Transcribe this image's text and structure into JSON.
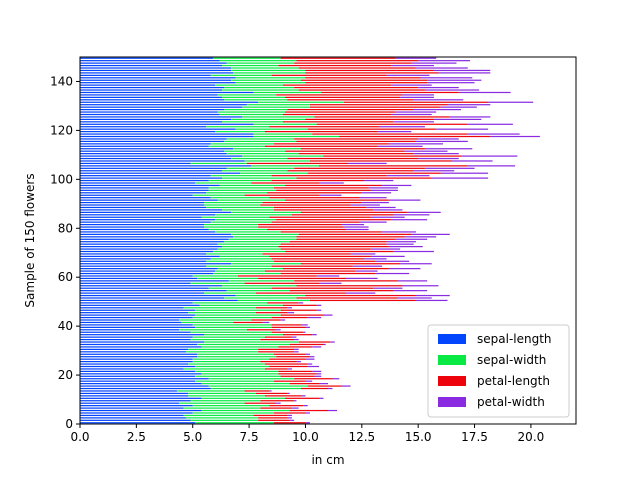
{
  "chart_data": {
    "type": "bar",
    "orientation": "horizontal",
    "stacked": true,
    "xlabel": "in cm",
    "ylabel": "Sample of 150 flowers",
    "xlim": [
      0,
      22
    ],
    "ylim": [
      0,
      150
    ],
    "xticks": [
      "0.0",
      "2.5",
      "5.0",
      "7.5",
      "10.0",
      "12.5",
      "15.0",
      "17.5",
      "20.0"
    ],
    "yticks": [
      "0",
      "20",
      "40",
      "60",
      "80",
      "100",
      "120",
      "140"
    ],
    "legend_position": "lower-right",
    "series": [
      {
        "name": "sepal-length",
        "color": "#0344fd",
        "values": [
          5.1,
          4.9,
          4.7,
          4.6,
          5.0,
          5.4,
          4.6,
          5.0,
          4.4,
          4.9,
          5.4,
          4.8,
          4.8,
          4.3,
          5.8,
          5.7,
          5.4,
          5.1,
          5.7,
          5.1,
          5.4,
          5.1,
          4.6,
          5.1,
          4.8,
          5.0,
          5.0,
          5.2,
          5.2,
          4.7,
          4.8,
          5.4,
          5.2,
          5.5,
          4.9,
          5.0,
          5.5,
          4.9,
          4.4,
          5.1,
          5.0,
          4.5,
          4.4,
          5.0,
          5.1,
          4.8,
          5.1,
          4.6,
          5.3,
          5.0,
          7.0,
          6.4,
          6.9,
          5.5,
          6.5,
          5.7,
          6.3,
          4.9,
          6.6,
          5.2,
          5.0,
          5.9,
          6.0,
          6.1,
          5.6,
          6.7,
          5.6,
          5.8,
          6.2,
          5.6,
          5.9,
          6.1,
          6.3,
          6.1,
          6.4,
          6.6,
          6.8,
          6.7,
          6.0,
          5.7,
          5.5,
          5.5,
          5.8,
          6.0,
          5.4,
          6.0,
          6.7,
          6.3,
          5.6,
          5.5,
          5.5,
          6.1,
          5.8,
          5.0,
          5.6,
          5.7,
          5.7,
          6.2,
          5.1,
          5.7,
          6.3,
          5.8,
          7.1,
          6.3,
          6.5,
          7.6,
          4.9,
          7.3,
          6.7,
          7.2,
          6.5,
          6.4,
          6.8,
          5.7,
          5.8,
          6.4,
          6.5,
          7.7,
          7.7,
          6.0,
          6.9,
          5.6,
          7.7,
          6.3,
          6.7,
          7.2,
          6.2,
          6.1,
          6.4,
          7.2,
          7.4,
          7.9,
          6.4,
          6.3,
          6.1,
          7.7,
          6.3,
          6.4,
          6.0,
          6.9,
          6.7,
          6.9,
          5.8,
          6.8,
          6.7,
          6.7,
          6.3,
          6.5,
          6.2,
          5.9
        ]
      },
      {
        "name": "sepal-width",
        "color": "#09e943",
        "values": [
          3.5,
          3.0,
          3.2,
          3.1,
          3.6,
          3.9,
          3.4,
          3.4,
          2.9,
          3.1,
          3.7,
          3.4,
          3.0,
          3.0,
          4.0,
          4.4,
          3.9,
          3.5,
          3.8,
          3.8,
          3.4,
          3.7,
          3.6,
          3.3,
          3.4,
          3.0,
          3.4,
          3.5,
          3.4,
          3.2,
          3.1,
          3.4,
          4.1,
          4.2,
          3.1,
          3.2,
          3.5,
          3.6,
          3.0,
          3.4,
          3.5,
          2.3,
          3.2,
          3.5,
          3.8,
          3.0,
          3.8,
          3.2,
          3.7,
          3.3,
          3.2,
          3.2,
          3.1,
          2.3,
          2.8,
          2.8,
          3.3,
          2.4,
          2.9,
          2.7,
          2.0,
          3.0,
          2.2,
          2.9,
          2.9,
          3.1,
          3.0,
          2.7,
          2.2,
          2.5,
          3.2,
          2.8,
          2.5,
          2.8,
          2.9,
          3.0,
          2.8,
          3.0,
          2.9,
          2.6,
          2.4,
          2.4,
          2.7,
          2.7,
          3.0,
          3.4,
          3.1,
          2.3,
          3.0,
          2.5,
          2.6,
          3.0,
          2.6,
          2.3,
          2.7,
          3.0,
          2.9,
          2.9,
          2.5,
          2.8,
          3.3,
          2.7,
          3.0,
          2.9,
          3.0,
          3.0,
          2.5,
          2.9,
          2.5,
          3.6,
          3.2,
          2.7,
          3.0,
          2.5,
          2.8,
          3.2,
          3.0,
          3.8,
          2.6,
          2.2,
          3.2,
          2.8,
          2.8,
          2.7,
          3.3,
          3.2,
          2.8,
          3.0,
          2.8,
          3.0,
          2.8,
          3.8,
          2.8,
          2.8,
          2.6,
          3.0,
          3.4,
          3.1,
          3.0,
          3.1,
          3.1,
          3.1,
          2.7,
          3.2,
          3.3,
          3.0,
          2.5,
          3.0,
          3.4,
          3.0
        ]
      },
      {
        "name": "petal-length",
        "color": "#ec030b",
        "values": [
          1.4,
          1.4,
          1.3,
          1.5,
          1.4,
          1.7,
          1.4,
          1.5,
          1.4,
          1.5,
          1.5,
          1.6,
          1.4,
          1.1,
          1.2,
          1.5,
          1.3,
          1.4,
          1.7,
          1.5,
          1.7,
          1.5,
          1.0,
          1.7,
          1.9,
          1.6,
          1.6,
          1.5,
          1.4,
          1.6,
          1.6,
          1.5,
          1.5,
          1.4,
          1.5,
          1.2,
          1.3,
          1.4,
          1.3,
          1.5,
          1.3,
          1.3,
          1.3,
          1.6,
          1.9,
          1.4,
          1.6,
          1.4,
          1.5,
          1.4,
          4.7,
          4.5,
          4.9,
          4.0,
          4.6,
          4.5,
          4.7,
          3.3,
          4.6,
          3.9,
          3.5,
          4.2,
          4.0,
          4.7,
          3.6,
          4.4,
          4.5,
          4.1,
          4.5,
          3.9,
          4.8,
          4.0,
          4.9,
          4.7,
          4.3,
          4.4,
          4.8,
          5.0,
          4.5,
          3.5,
          3.8,
          3.7,
          3.9,
          5.1,
          4.5,
          4.5,
          4.7,
          4.4,
          4.1,
          4.0,
          4.4,
          4.6,
          4.0,
          3.3,
          4.2,
          4.2,
          4.2,
          4.3,
          3.0,
          4.1,
          6.0,
          5.1,
          5.9,
          5.6,
          5.8,
          6.6,
          4.5,
          6.3,
          5.8,
          6.1,
          5.1,
          5.3,
          5.5,
          5.0,
          5.1,
          5.3,
          5.5,
          6.7,
          6.9,
          5.0,
          5.7,
          4.9,
          6.7,
          4.9,
          5.7,
          6.0,
          4.8,
          4.9,
          5.6,
          5.8,
          6.1,
          6.4,
          5.6,
          5.1,
          5.6,
          6.1,
          5.6,
          5.5,
          4.8,
          5.4,
          5.6,
          5.1,
          5.1,
          5.9,
          5.7,
          5.2,
          5.0,
          5.2,
          5.4,
          5.1
        ]
      },
      {
        "name": "petal-width",
        "color": "#8a2be2",
        "values": [
          0.2,
          0.2,
          0.2,
          0.2,
          0.2,
          0.4,
          0.3,
          0.2,
          0.2,
          0.1,
          0.2,
          0.2,
          0.1,
          0.1,
          0.2,
          0.4,
          0.4,
          0.3,
          0.3,
          0.3,
          0.2,
          0.4,
          0.2,
          0.5,
          0.2,
          0.2,
          0.4,
          0.2,
          0.2,
          0.2,
          0.2,
          0.4,
          0.1,
          0.2,
          0.2,
          0.2,
          0.2,
          0.1,
          0.2,
          0.2,
          0.3,
          0.3,
          0.2,
          0.6,
          0.4,
          0.3,
          0.2,
          0.2,
          0.2,
          0.2,
          1.4,
          1.5,
          1.5,
          1.3,
          1.5,
          1.3,
          1.6,
          1.0,
          1.3,
          1.4,
          1.0,
          1.5,
          1.0,
          1.4,
          1.3,
          1.4,
          1.5,
          1.0,
          1.5,
          1.1,
          1.8,
          1.3,
          1.5,
          1.2,
          1.3,
          1.4,
          1.4,
          1.7,
          1.5,
          1.0,
          1.1,
          1.0,
          1.2,
          1.6,
          1.5,
          1.6,
          1.5,
          1.3,
          1.3,
          1.3,
          1.2,
          1.4,
          1.2,
          1.0,
          1.3,
          1.2,
          1.3,
          1.3,
          1.1,
          1.3,
          2.5,
          1.9,
          2.1,
          1.8,
          2.2,
          2.1,
          1.7,
          1.8,
          1.8,
          2.5,
          2.0,
          1.9,
          2.1,
          2.0,
          2.4,
          2.3,
          1.8,
          2.2,
          2.3,
          1.5,
          2.3,
          2.0,
          2.0,
          1.8,
          2.1,
          1.8,
          1.8,
          1.8,
          2.1,
          1.6,
          1.9,
          2.0,
          2.2,
          1.5,
          1.4,
          2.3,
          2.4,
          1.8,
          1.8,
          2.1,
          2.4,
          2.3,
          1.9,
          2.3,
          2.5,
          2.3,
          1.9,
          2.0,
          2.3,
          1.8
        ]
      }
    ]
  }
}
